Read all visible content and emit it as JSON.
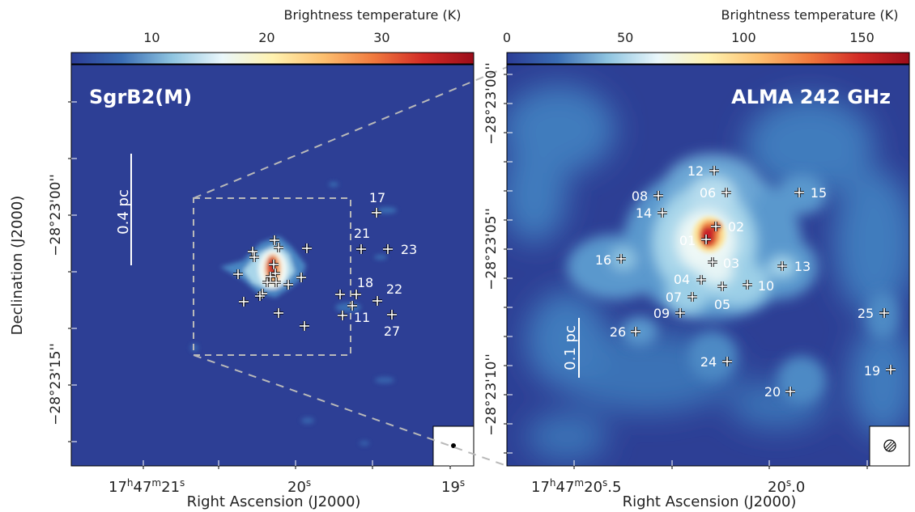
{
  "figure": {
    "y_axis_label": "Declination (J2000)",
    "x_axis_label": "Right Ascension (J2000)"
  },
  "colormap_stops": [
    "#2b3c96",
    "#3a6db4",
    "#8ec4e0",
    "#eaf7fb",
    "#fff2b0",
    "#fdc070",
    "#f07a3e",
    "#d22b26",
    "#9b0d1a"
  ],
  "left_panel": {
    "colorbar_label": "Brightness temperature (K)",
    "colorbar_range": [
      3,
      38
    ],
    "colorbar_ticks": [
      "10",
      "20",
      "30"
    ],
    "colorbar_tick_values": [
      10,
      20,
      30
    ],
    "title": "SgrB2(M)",
    "scale_bar_label": "0.4 pc",
    "ra_ticks": [
      {
        "h": "17",
        "m": "47",
        "s": "21"
      },
      {
        "s": "20"
      },
      {
        "s": "19"
      }
    ],
    "dec_ticks": [
      "−28°23'00''",
      "−28°23'15''"
    ],
    "sources": [
      {
        "label": "17"
      },
      {
        "label": "21"
      },
      {
        "label": "23"
      },
      {
        "label": "18"
      },
      {
        "label": "22"
      },
      {
        "label": "11"
      },
      {
        "label": "27"
      }
    ]
  },
  "right_panel": {
    "colorbar_label": "Brightness temperature (K)",
    "colorbar_range": [
      0,
      170
    ],
    "colorbar_ticks": [
      "0",
      "50",
      "100",
      "150"
    ],
    "colorbar_tick_values": [
      0,
      50,
      100,
      150
    ],
    "title": "ALMA 242 GHz",
    "scale_bar_label": "0.1 pc",
    "ra_ticks": [
      {
        "h": "17",
        "m": "47",
        "s": "20",
        "frac": "5"
      },
      {
        "s": "20",
        "frac": "0"
      }
    ],
    "dec_ticks": [
      "−28°23'00''",
      "−28°23'05''",
      "−28°23'10''"
    ],
    "sources": [
      {
        "label": "01"
      },
      {
        "label": "02"
      },
      {
        "label": "03"
      },
      {
        "label": "04"
      },
      {
        "label": "05"
      },
      {
        "label": "06"
      },
      {
        "label": "07"
      },
      {
        "label": "08"
      },
      {
        "label": "09"
      },
      {
        "label": "10"
      },
      {
        "label": "12"
      },
      {
        "label": "13"
      },
      {
        "label": "14"
      },
      {
        "label": "15"
      },
      {
        "label": "16"
      },
      {
        "label": "19"
      },
      {
        "label": "20"
      },
      {
        "label": "24"
      },
      {
        "label": "25"
      },
      {
        "label": "26"
      }
    ]
  }
}
